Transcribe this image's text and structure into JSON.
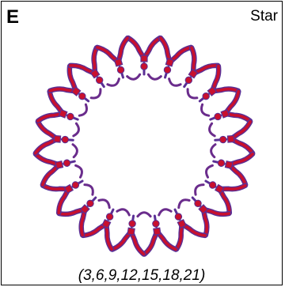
{
  "panel": {
    "letter": "E",
    "title": "Star",
    "caption": "(3,6,9,12,15,18,21)"
  },
  "diagram": {
    "arm_count": 21,
    "colors": {
      "backbone": "#6a2c8c",
      "arm_outline": "#5a2f95",
      "arm_fill": "#c8102e",
      "bead": "#c8102e"
    }
  }
}
